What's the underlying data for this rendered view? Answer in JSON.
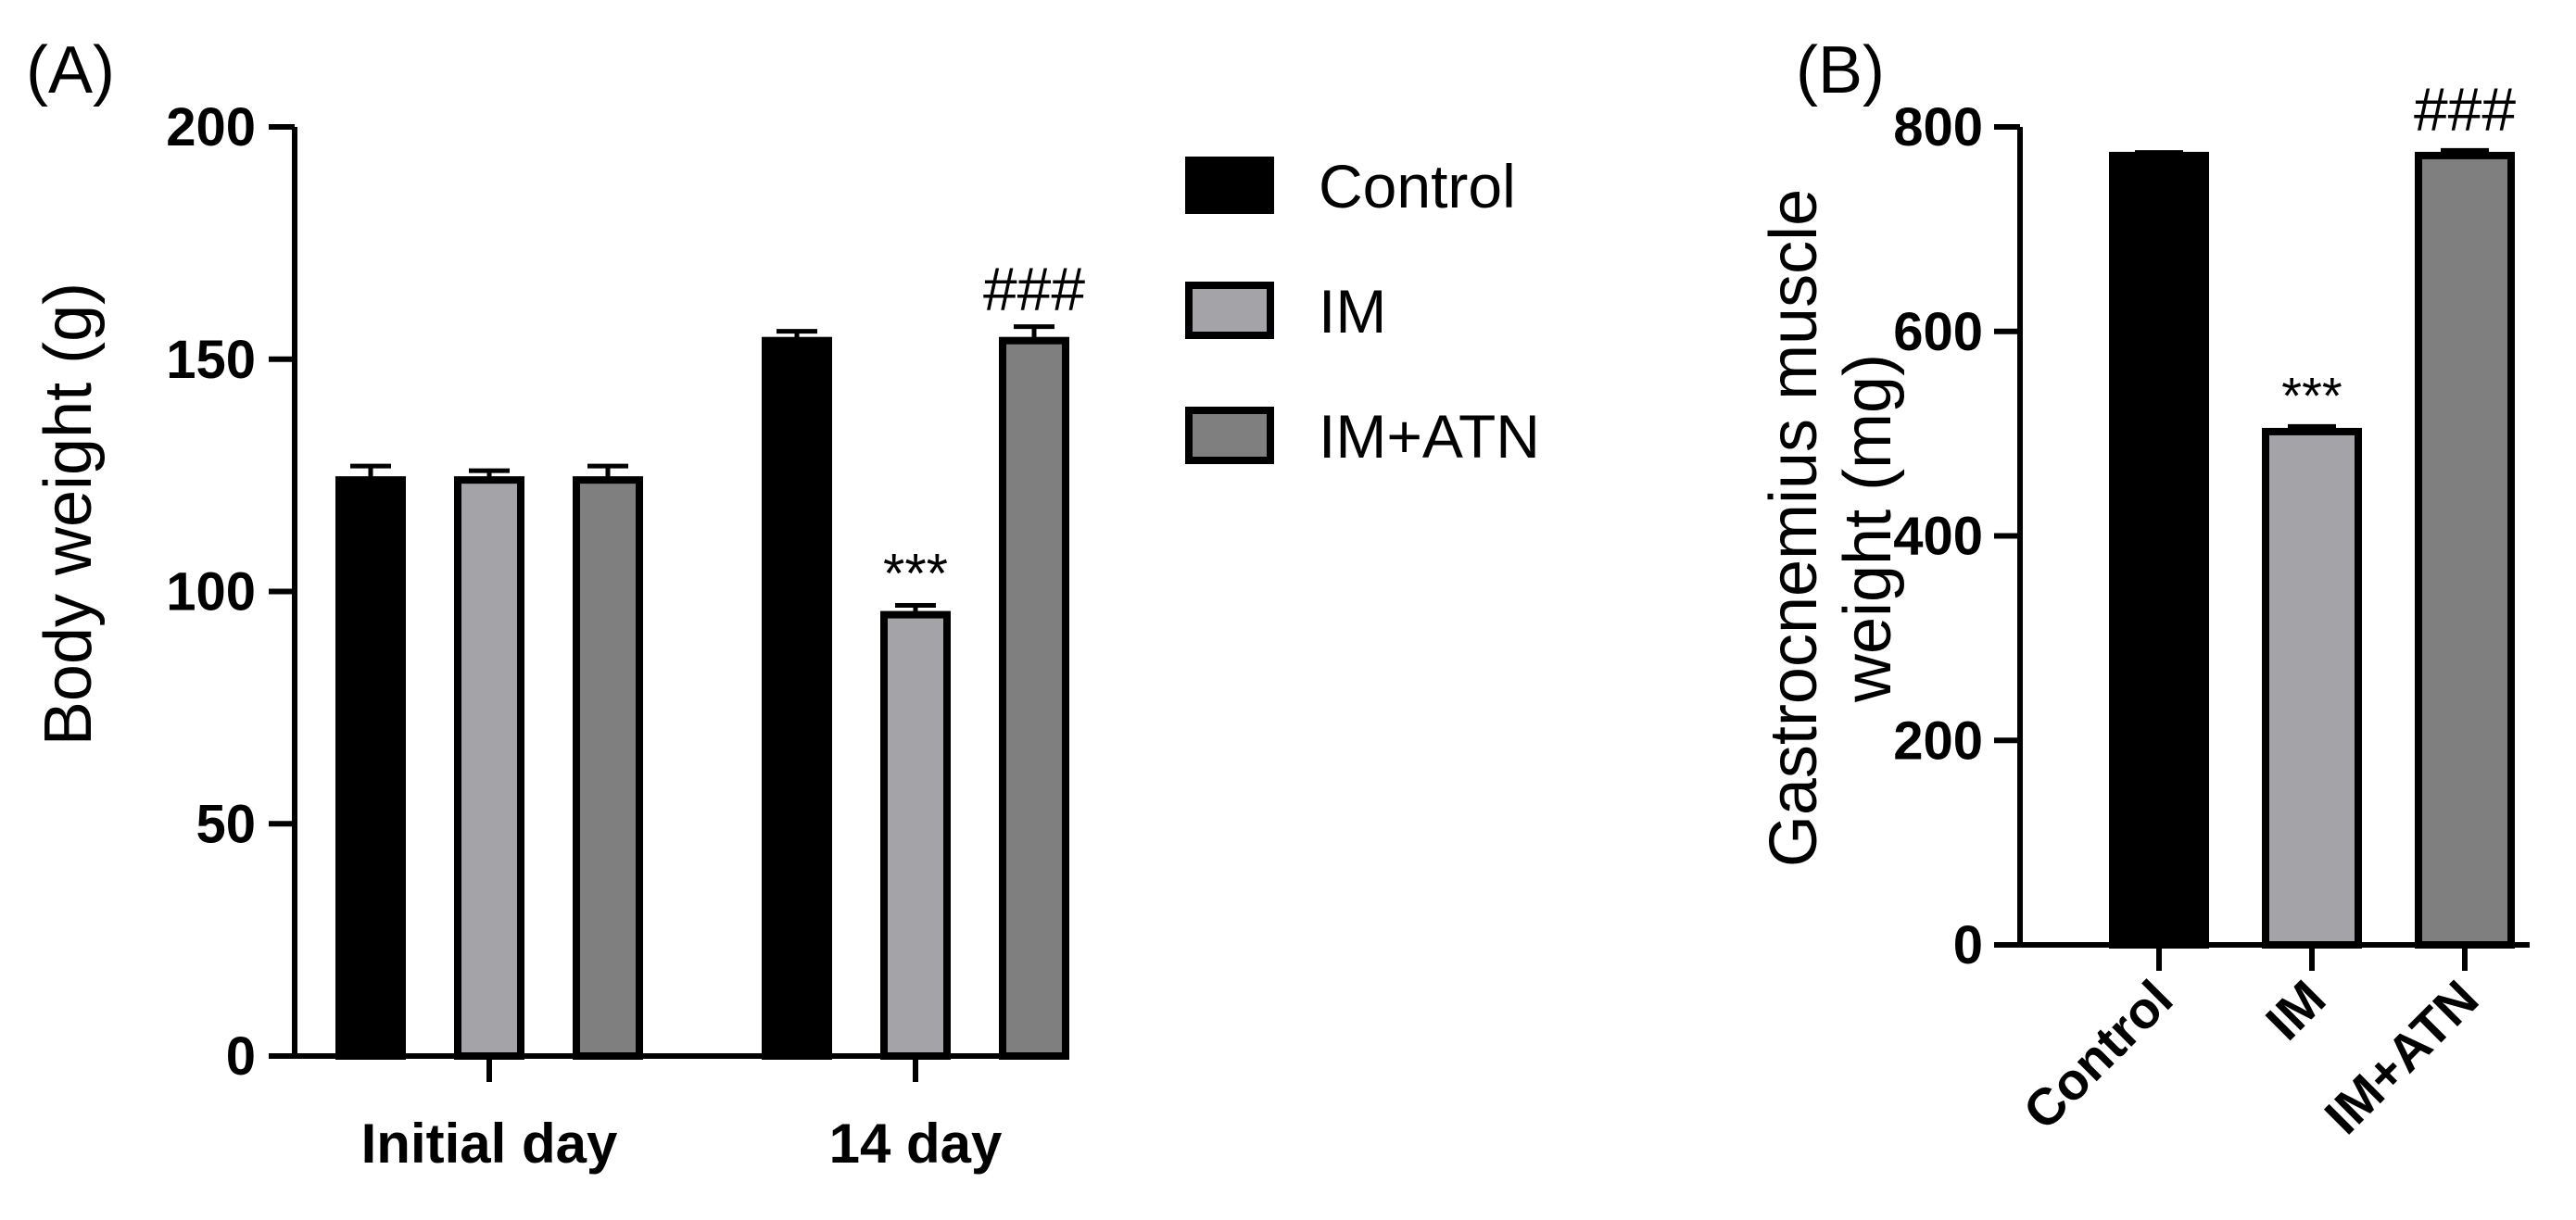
{
  "colors": {
    "Control": "#000000",
    "IM": "#a3a3a8",
    "IM+ATN": "#7f7f7f",
    "outline": "#000000"
  },
  "chart_data": [
    {
      "type": "bar",
      "panel_label": "(A)",
      "ylabel": "Body weight (g)",
      "xlabel": "",
      "ylim": [
        0,
        200
      ],
      "yticks": [
        0,
        50,
        100,
        150,
        200
      ],
      "categories": [
        "Initial day",
        "14 day"
      ],
      "series": [
        {
          "name": "Control",
          "values": [
            124,
            154
          ],
          "errors": [
            3,
            2
          ]
        },
        {
          "name": "IM",
          "values": [
            124,
            95
          ],
          "errors": [
            2,
            2
          ]
        },
        {
          "name": "IM+ATN",
          "values": [
            124,
            154
          ],
          "errors": [
            3,
            3
          ]
        }
      ],
      "annotations": [
        {
          "text": "***",
          "category": "14 day",
          "series": "IM"
        },
        {
          "text": "###",
          "category": "14 day",
          "series": "IM+ATN"
        }
      ],
      "legend": {
        "position": "right",
        "entries": [
          "Control",
          "IM",
          "IM+ATN"
        ]
      }
    },
    {
      "type": "bar",
      "panel_label": "(B)",
      "ylabel_lines": [
        "Gastrocnemius muscle",
        "weight (mg)"
      ],
      "xlabel": "",
      "ylim": [
        0,
        800
      ],
      "yticks": [
        0,
        200,
        400,
        600,
        800
      ],
      "categories": [
        "Control",
        "IM",
        "IM+ATN"
      ],
      "values": [
        772,
        502,
        772
      ],
      "errors": [
        3,
        5,
        5
      ],
      "annotations": [
        {
          "text": "***",
          "category": "IM"
        },
        {
          "text": "###",
          "category": "IM+ATN"
        }
      ]
    }
  ]
}
